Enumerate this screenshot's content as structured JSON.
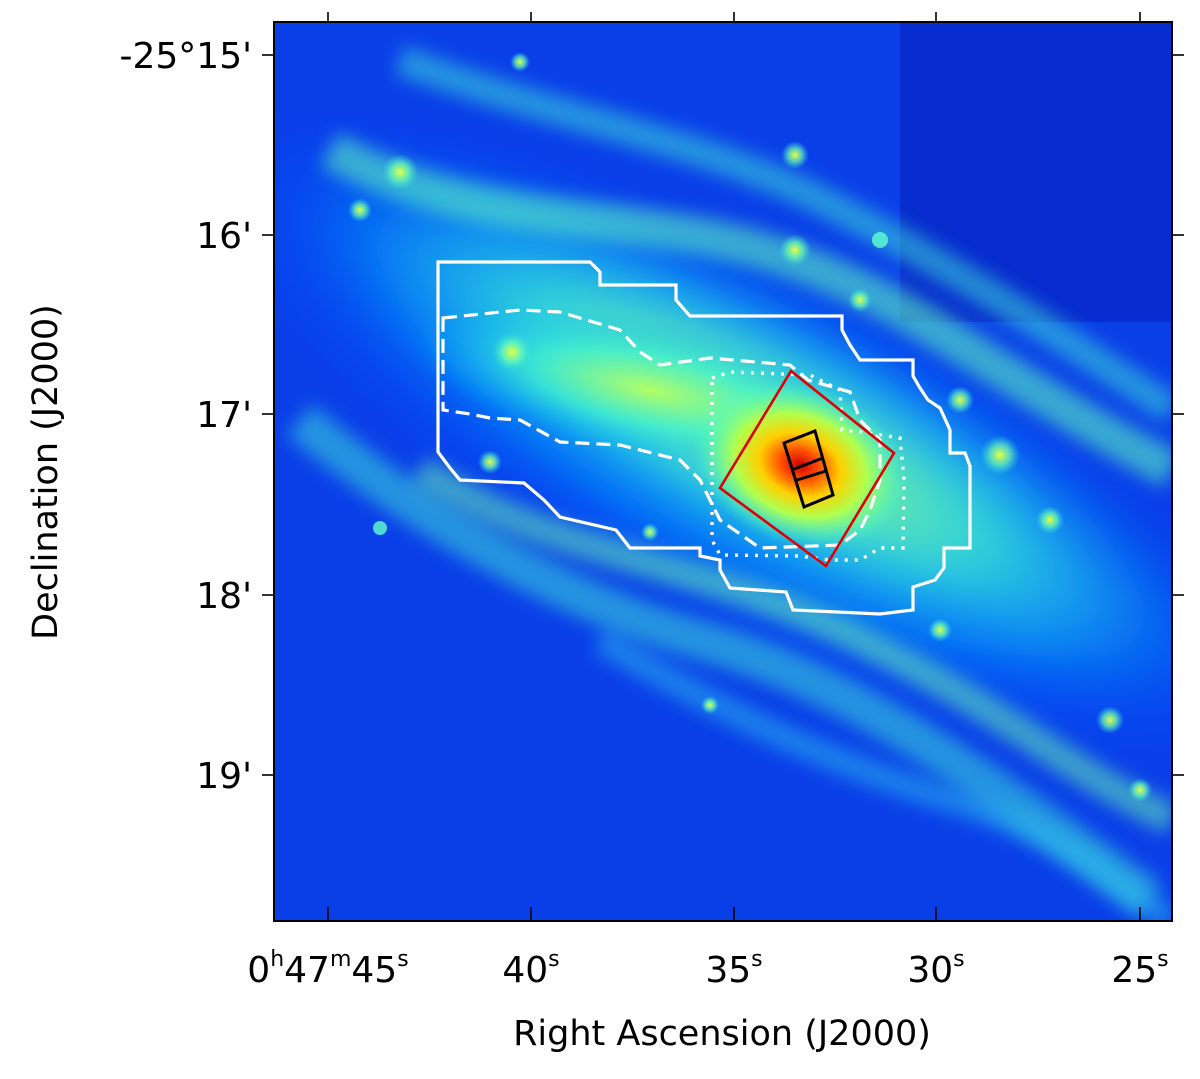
{
  "figure": {
    "x_axis_label": "Right Ascension (J2000)",
    "y_axis_label": "Declination (J2000)",
    "x_ticks": [
      {
        "h": "0",
        "h_unit": "h",
        "m": "47",
        "m_unit": "m",
        "s": "45",
        "s_unit": "s"
      },
      {
        "s": "40",
        "s_unit": "s"
      },
      {
        "s": "35",
        "s_unit": "s"
      },
      {
        "s": "30",
        "s_unit": "s"
      },
      {
        "s": "25",
        "s_unit": "s"
      }
    ],
    "y_ticks": [
      "-25°15'",
      "16'",
      "17'",
      "18'",
      "19'"
    ],
    "colormap": [
      "#0010b0",
      "#0040ff",
      "#00b0ff",
      "#40ffd0",
      "#c0ff40",
      "#ffe000",
      "#ff6000",
      "#d00000"
    ],
    "overlays": [
      {
        "name": "solid-contour",
        "color": "#ffffff",
        "style": "solid"
      },
      {
        "name": "dashed-contour",
        "color": "#ffffff",
        "style": "dashed"
      },
      {
        "name": "dotted-contour",
        "color": "#ffffff",
        "style": "dotted"
      },
      {
        "name": "rotated-field",
        "color": "#e00000",
        "style": "solid"
      },
      {
        "name": "slit-boxes",
        "color": "#000000",
        "style": "solid"
      }
    ]
  }
}
